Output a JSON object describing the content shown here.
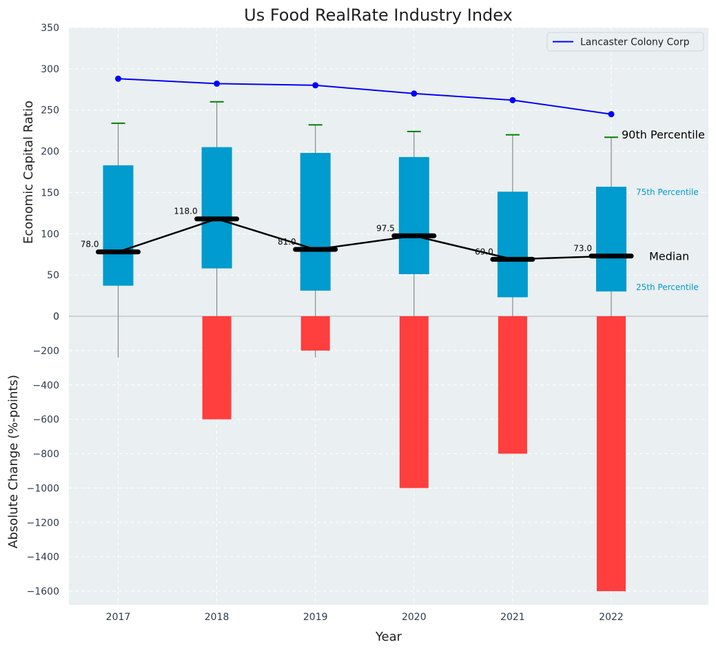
{
  "chart_data": {
    "type": "box+line+bar",
    "title": "Us Food RealRate Industry Index",
    "xlabel": "Year",
    "ylabel_top": "Economic Capital Ratio",
    "ylabel_bottom": "Absolute Change (%-points)",
    "categories": [
      "2017",
      "2018",
      "2019",
      "2020",
      "2021",
      "2022"
    ],
    "grid": true,
    "legend_position": "top-right",
    "top_panel": {
      "ylim": [
        0,
        350
      ],
      "yticks": [
        0,
        50,
        100,
        150,
        200,
        250,
        300,
        350
      ],
      "ytick_labels": [
        "0",
        "50",
        "100",
        "150",
        "200",
        "250",
        "300",
        "350"
      ],
      "percentiles": {
        "p10_floor": [
          -50,
          -50,
          -50,
          -50,
          -50,
          -50
        ],
        "p25": [
          37,
          58,
          31,
          51,
          23,
          30
        ],
        "median": [
          78.0,
          118.0,
          81.0,
          97.5,
          69.0,
          73.0
        ],
        "p75": [
          183,
          205,
          198,
          193,
          151,
          157
        ],
        "p90": [
          234,
          260,
          232,
          224,
          220,
          217
        ]
      },
      "median_labels": [
        "78.0",
        "118.0",
        "81.0",
        "97.5",
        "69.0",
        "73.0"
      ],
      "company_series": {
        "name": "Lancaster Colony Corp",
        "values": [
          288,
          282,
          280,
          270,
          262,
          245
        ]
      },
      "annotations": {
        "p90": "90th Percentile",
        "p75": "75th Percentile",
        "median": "Median",
        "p25": "25th Percentile"
      }
    },
    "bottom_panel": {
      "ylim": [
        -1680,
        0
      ],
      "yticks": [
        0,
        -200,
        -400,
        -600,
        -800,
        -1000,
        -1200,
        -1400,
        -1600
      ],
      "ytick_labels": [
        "0",
        "−200",
        "−400",
        "−600",
        "−800",
        "−1000",
        "−1200",
        "−1400",
        "−1600"
      ],
      "values": [
        0,
        -600,
        -200,
        -1000,
        -800,
        -1600
      ]
    },
    "colors": {
      "box": "#009bcf",
      "change_bar": "#ff3e3e",
      "company_line": "#0000ff",
      "median_line": "#000000",
      "p90_cap": "#008000",
      "whisker": "#8a8a8a",
      "plot_bg": "#eaeff1",
      "p75_text": "#0099cc"
    }
  }
}
